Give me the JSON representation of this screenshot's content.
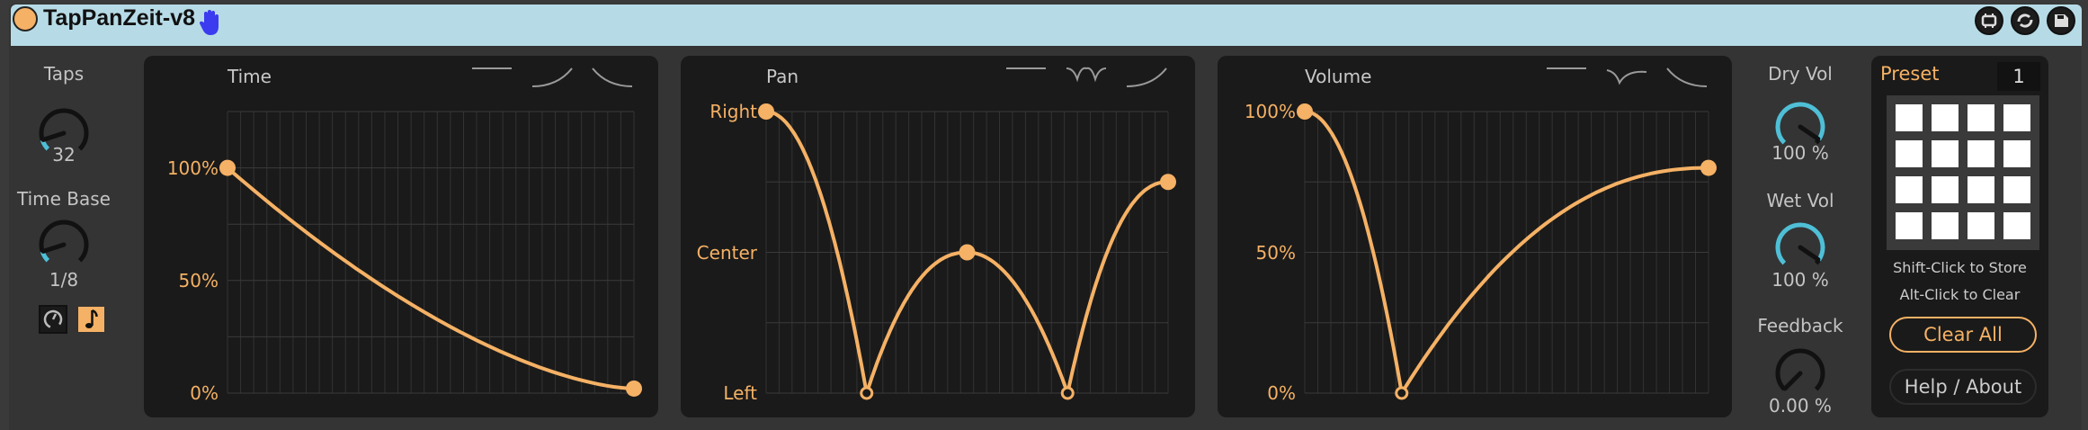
{
  "title": "TapPanZeit-v8",
  "colors": {
    "accent": "#f5b165",
    "knob_fill": "#4fbfd6",
    "titlebar": "#b6dbe6",
    "panel": "#1a1a1a",
    "hand_icon": "#3b3bf0"
  },
  "titlebar_icons": [
    "resize-icon",
    "refresh-icon",
    "save-icon"
  ],
  "left_controls": {
    "taps": {
      "label": "Taps",
      "value": "32",
      "fill": 0.1
    },
    "time_base": {
      "label": "Time Base",
      "value": "1/8",
      "fill": 0.1
    },
    "mode_buttons": [
      {
        "icon": "clock-icon",
        "active": false
      },
      {
        "icon": "note-icon",
        "active": true
      }
    ]
  },
  "graphs": [
    {
      "id": "time",
      "title": "Time",
      "y_labels": [
        {
          "text": "100%",
          "v": 1.0
        },
        {
          "text": "50%",
          "v": 0.5
        },
        {
          "text": "0%",
          "v": 0.0
        }
      ],
      "y_range": [
        0,
        1.25
      ],
      "shape_icons": [
        "flat",
        "rise",
        "fall"
      ],
      "points": [
        [
          0,
          1.0
        ],
        [
          1,
          0.02
        ]
      ],
      "segments": [
        "decay"
      ]
    },
    {
      "id": "pan",
      "title": "Pan",
      "y_labels": [
        {
          "text": "Right",
          "v": 1
        },
        {
          "text": "Center",
          "v": 0
        },
        {
          "text": "Left",
          "v": -1
        }
      ],
      "y_range": [
        -1,
        1
      ],
      "shape_icons": [
        "flat",
        "bounce",
        "rise"
      ],
      "points": [
        [
          0,
          1
        ],
        [
          0.25,
          -1
        ],
        [
          0.5,
          0
        ],
        [
          0.75,
          -1
        ],
        [
          1,
          0.5
        ]
      ],
      "segments": [
        "drop",
        "rise",
        "drop",
        "rise"
      ]
    },
    {
      "id": "volume",
      "title": "Volume",
      "y_labels": [
        {
          "text": "100%",
          "v": 1.0
        },
        {
          "text": "50%",
          "v": 0.5
        },
        {
          "text": "0%",
          "v": 0.0
        }
      ],
      "y_range": [
        0,
        1
      ],
      "shape_icons": [
        "flat",
        "dip",
        "fall"
      ],
      "points": [
        [
          0,
          1.0
        ],
        [
          0.24,
          0
        ],
        [
          1,
          0.8
        ]
      ],
      "segments": [
        "drop",
        "rise"
      ]
    }
  ],
  "right_controls": {
    "dry_vol": {
      "label": "Dry Vol",
      "value": "100 %",
      "fill": 0.96
    },
    "wet_vol": {
      "label": "Wet Vol",
      "value": "100 %",
      "fill": 0.96
    },
    "feedback": {
      "label": "Feedback",
      "value": "0.00 %",
      "fill": 0
    }
  },
  "preset": {
    "label": "Preset",
    "number": "1",
    "hint_store": "Shift-Click to Store",
    "hint_clear": "Alt-Click to Clear",
    "clear_all": "Clear All",
    "help": "Help / About"
  }
}
